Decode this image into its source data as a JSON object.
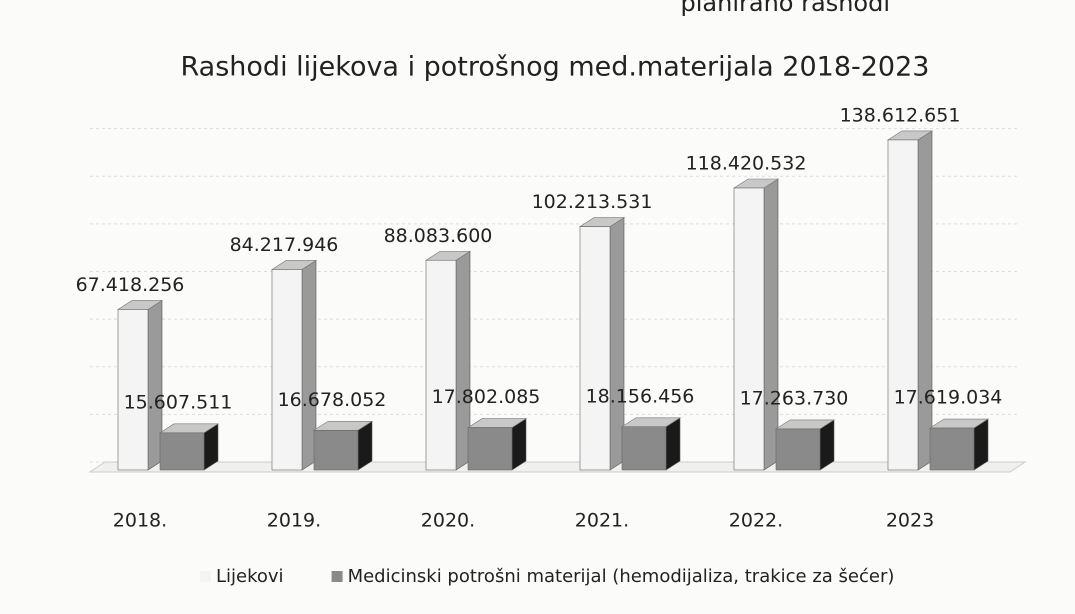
{
  "header_fragment": "planirano rashodi",
  "chart_data": {
    "type": "bar3d",
    "title": "Rashodi lijekova i potrošnog med.materijala 2018-2023",
    "categories": [
      "2018.",
      "2019.",
      "2020.",
      "2021.",
      "2022.",
      "2023"
    ],
    "series": [
      {
        "name": "Lijekovi",
        "color": "#f4f4f4",
        "values": [
          67418256,
          84217946,
          88083600,
          102213531,
          118420532,
          138612651
        ],
        "value_labels": [
          "67.418.256",
          "84.217.946",
          "88.083.600",
          "102.213.531",
          "118.420.532",
          "138.612.651"
        ]
      },
      {
        "name": "Medicinski potrošni materijal (hemodijaliza, trakice za šećer)",
        "color": "#8a8a8a",
        "values": [
          15607511,
          16678052,
          17802085,
          18156456,
          17263730,
          17619034
        ],
        "value_labels": [
          "15.607.511",
          "16.678.052",
          "17.802.085",
          "18.156.456",
          "17.263.730",
          "17.619.034"
        ]
      }
    ],
    "ylim": [
      0,
      160000000
    ],
    "grid": true,
    "legend": "bottom"
  }
}
